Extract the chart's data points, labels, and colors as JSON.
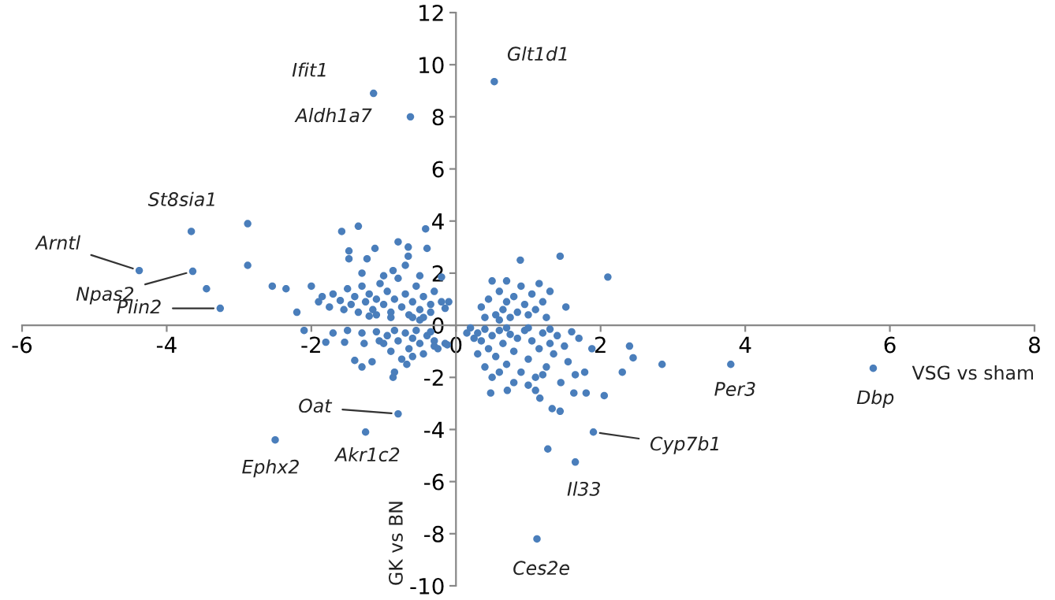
{
  "chart_data": {
    "type": "scatter",
    "xlabel": "VSG vs sham",
    "ylabel": "GK vs BN",
    "xlim": [
      -6,
      8
    ],
    "ylim": [
      -10,
      12
    ],
    "xticks": [
      -6,
      -4,
      -2,
      0,
      2,
      4,
      6,
      8
    ],
    "yticks": [
      -10,
      -8,
      -6,
      -4,
      -2,
      0,
      2,
      4,
      6,
      8,
      10,
      12
    ],
    "grid": false,
    "marker": "circle",
    "series": [
      {
        "color": "#4a7ebb",
        "x": [
          -1.14,
          -0.63,
          0.53,
          -3.66,
          -2.88,
          -4.38,
          -3.64,
          -3.45,
          -2.88,
          -3.26,
          -2.54,
          -2.35,
          -2.0,
          -0.8,
          -1.25,
          -2.5,
          3.8,
          5.77,
          1.9,
          1.65,
          1.27,
          1.12,
          2.1,
          1.44,
          0.89,
          1.52,
          2.85,
          2.4,
          2.45,
          2.3,
          2.05,
          1.8,
          1.63,
          1.44,
          1.33,
          1.16,
          0.48,
          0.71,
          1.1,
          1.78,
          1.88,
          -1.8,
          -1.54,
          -1.4,
          -1.3,
          -1.16,
          -0.87,
          -0.85,
          -0.68,
          -1.27,
          -1.06,
          -1.58,
          -1.35,
          -0.42,
          -0.8,
          -1.48,
          -1.48,
          -1.23,
          -1.12,
          -0.66,
          -0.66,
          -0.4,
          -0.87,
          -1.3,
          -0.2,
          -1.9,
          -1.85,
          -1.75,
          -1.7,
          -1.6,
          -1.55,
          -1.5,
          -1.45,
          -1.4,
          -1.35,
          -1.3,
          -1.25,
          -1.2,
          -1.15,
          -1.1,
          -1.05,
          -1.0,
          -0.95,
          -0.9,
          -0.85,
          -0.8,
          -0.75,
          -0.7,
          -0.65,
          -0.6,
          -0.55,
          -0.5,
          -0.45,
          -0.45,
          -0.35,
          -0.3,
          -0.35,
          -0.2,
          -0.15,
          -0.1,
          -0.6,
          -0.9,
          -1.2,
          -0.5,
          -0.5,
          -2.2,
          -1.0,
          -0.7,
          -1.1,
          -1.5,
          -1.3,
          -1.1,
          -0.95,
          -0.85,
          -0.8,
          -0.7,
          -0.65,
          -0.6,
          -0.55,
          -0.5,
          -0.45,
          -0.4,
          -0.35,
          -0.3,
          -0.25,
          -0.3,
          -0.15,
          -0.12,
          -0.9,
          -1.0,
          -0.75,
          -2.1,
          -1.7,
          -0.6,
          0.35,
          0.45,
          0.55,
          0.6,
          0.65,
          0.7,
          0.75,
          0.8,
          0.85,
          0.9,
          0.95,
          1.0,
          1.05,
          1.1,
          1.15,
          1.2,
          1.25,
          0.5,
          0.7,
          1.3,
          0.4,
          0.6,
          0.2,
          0.3,
          0.35,
          0.4,
          0.45,
          0.5,
          0.55,
          0.6,
          0.65,
          0.7,
          0.75,
          0.8,
          0.85,
          0.9,
          0.95,
          1.0,
          1.05,
          1.1,
          1.15,
          1.2,
          1.25,
          1.3,
          1.35,
          1.4,
          1.45,
          1.5,
          1.55,
          1.6,
          1.65,
          1.7,
          0.5,
          0.3,
          0.4,
          0.6,
          0.8,
          1.0,
          1.2,
          0.25,
          0.15,
          0.7,
          1.0,
          1.3
        ],
        "values": [
          8.9,
          8.0,
          9.35,
          3.6,
          3.9,
          2.1,
          2.07,
          1.4,
          2.3,
          0.65,
          1.5,
          1.4,
          1.5,
          -3.4,
          -4.1,
          -4.4,
          -1.5,
          -1.65,
          -4.1,
          -5.25,
          -4.75,
          -8.2,
          1.85,
          2.65,
          2.5,
          0.7,
          -1.5,
          -0.8,
          -1.25,
          -1.8,
          -2.7,
          -2.6,
          -2.6,
          -3.3,
          -3.2,
          -2.8,
          -2.6,
          -2.5,
          -2.5,
          -1.8,
          -0.9,
          -0.65,
          -0.65,
          -1.35,
          -1.6,
          -1.4,
          -2.0,
          -1.8,
          -1.5,
          -0.7,
          -0.6,
          3.6,
          3.8,
          3.7,
          3.2,
          2.85,
          2.55,
          2.55,
          2.95,
          3.0,
          2.65,
          2.95,
          2.1,
          2.0,
          1.85,
          0.9,
          1.1,
          0.7,
          1.2,
          0.95,
          0.6,
          1.4,
          0.8,
          1.1,
          0.5,
          1.5,
          0.9,
          1.2,
          0.6,
          1.0,
          1.6,
          0.8,
          1.3,
          0.5,
          1.0,
          1.8,
          0.7,
          1.2,
          0.4,
          0.9,
          1.5,
          0.6,
          1.1,
          0.3,
          0.8,
          1.3,
          0.5,
          0.9,
          0.65,
          0.9,
          0.3,
          0.3,
          0.35,
          0.2,
          1.9,
          0.5,
          1.9,
          2.3,
          0.4,
          -0.2,
          -0.3,
          -0.25,
          -0.4,
          -0.2,
          -0.6,
          -0.3,
          -0.9,
          -0.5,
          -0.2,
          -0.7,
          -1.1,
          -0.4,
          -0.25,
          -0.6,
          -0.9,
          -0.8,
          -0.7,
          -0.75,
          -1.0,
          -0.7,
          -1.3,
          -0.2,
          -0.3,
          -1.2,
          0.7,
          1.0,
          0.4,
          1.3,
          0.6,
          0.9,
          0.3,
          1.1,
          0.5,
          1.5,
          0.8,
          0.4,
          1.2,
          0.6,
          1.6,
          0.9,
          0.3,
          1.7,
          1.7,
          1.3,
          0.3,
          0.2,
          -0.1,
          -0.3,
          -0.6,
          -0.15,
          -0.9,
          -0.4,
          -1.2,
          -0.2,
          -0.7,
          -1.5,
          -0.35,
          -1.0,
          -0.5,
          -1.8,
          -0.2,
          -1.3,
          -0.6,
          -2.0,
          -0.9,
          -0.3,
          -1.6,
          -0.7,
          -1.1,
          -0.4,
          -2.2,
          -0.8,
          -1.4,
          -0.25,
          -1.9,
          -0.5,
          -2.0,
          -1.1,
          -1.6,
          -1.8,
          -2.2,
          -2.3,
          -1.9,
          -0.5,
          -0.3,
          -0.1,
          -0.1,
          -0.15
        ]
      }
    ],
    "annotations": [
      {
        "text": "Ifit1",
        "x": -1.14,
        "y": 8.9
      },
      {
        "text": "Aldh1a7",
        "x": -0.63,
        "y": 8.0
      },
      {
        "text": "Glt1d1",
        "x": 0.53,
        "y": 9.35
      },
      {
        "text": "St8sia1",
        "x": -3.66,
        "y": 3.6
      },
      {
        "text": "Arntl",
        "x": -4.38,
        "y": 2.1
      },
      {
        "text": "Npas2",
        "x": -3.64,
        "y": 2.07
      },
      {
        "text": "Plin2",
        "x": -3.26,
        "y": 0.65
      },
      {
        "text": "Oat",
        "x": -0.8,
        "y": -3.4
      },
      {
        "text": "Akr1c2",
        "x": -1.25,
        "y": -4.1
      },
      {
        "text": "Ephx2",
        "x": -2.5,
        "y": -4.4
      },
      {
        "text": "Per3",
        "x": 3.8,
        "y": -1.5
      },
      {
        "text": "Dbp",
        "x": 5.77,
        "y": -1.65
      },
      {
        "text": "Cyp7b1",
        "x": 1.9,
        "y": -4.1
      },
      {
        "text": "Il33",
        "x": 1.65,
        "y": -5.25
      },
      {
        "text": "Ces2e",
        "x": 1.12,
        "y": -8.2
      }
    ]
  }
}
